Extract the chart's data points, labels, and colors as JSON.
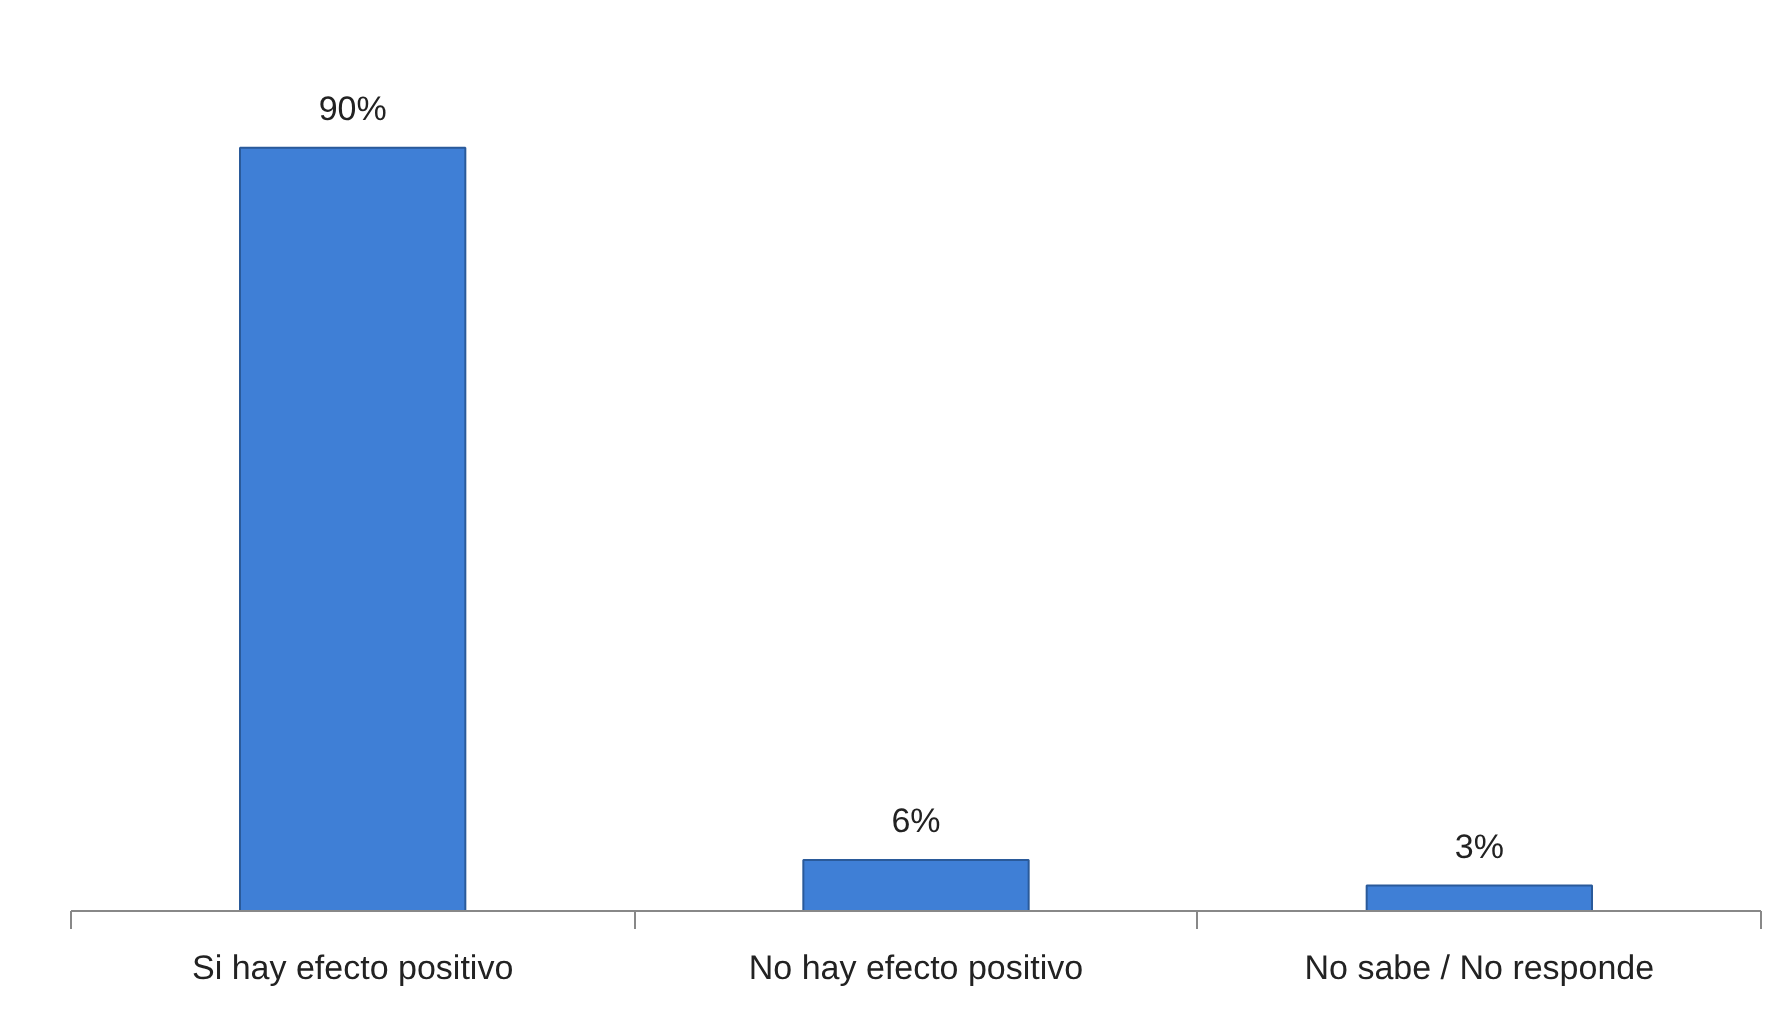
{
  "chart_data": {
    "type": "bar",
    "categories": [
      "Si hay efecto positivo",
      "No hay efecto positivo",
      "No sabe / No responde"
    ],
    "values": [
      90,
      6,
      3
    ],
    "value_labels": [
      "90%",
      "6%",
      "3%"
    ],
    "color": "#3f7fd6"
  }
}
